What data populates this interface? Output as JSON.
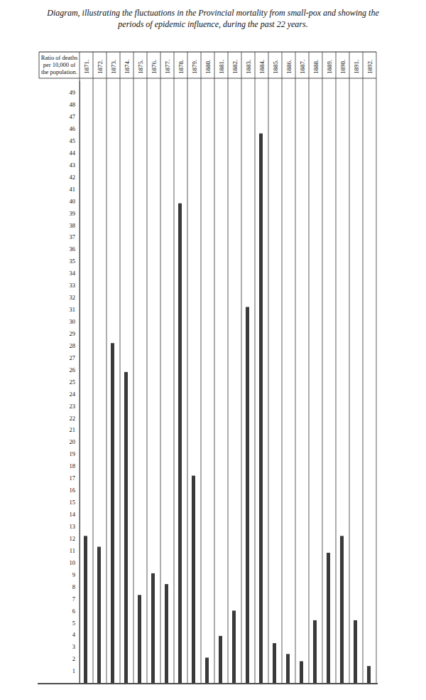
{
  "chart_data": {
    "type": "bar",
    "title": "Diagram, illustrating the fluctuations in the Provincial mortality from small-pox and showing the periods of epidemic influence, during the past 22 years.",
    "y_label": "Ratio of deaths per 10,000 of the population.",
    "categories": [
      "1871.",
      "1872.",
      "1873.",
      "1874.",
      "1875.",
      "1876.",
      "1877.",
      "1878.",
      "1879.",
      "1880.",
      "1881.",
      "1882.",
      "1883.",
      "1884.",
      "1885.",
      "1886.",
      "1887.",
      "1888.",
      "1889.",
      "1890.",
      "1891.",
      "1892."
    ],
    "values": [
      12.2,
      11.3,
      28.2,
      25.8,
      7.3,
      9.1,
      8.2,
      39.8,
      17.2,
      2.1,
      3.9,
      6.0,
      31.2,
      45.6,
      3.3,
      2.4,
      1.8,
      5.2,
      10.8,
      12.2,
      5.2,
      1.4
    ],
    "color": "#3a3a3a",
    "ylim": [
      0,
      50
    ],
    "yticks": [
      1,
      2,
      3,
      4,
      5,
      6,
      7,
      8,
      9,
      10,
      11,
      12,
      13,
      14,
      15,
      16,
      17,
      18,
      19,
      20,
      21,
      22,
      23,
      24,
      25,
      26,
      27,
      28,
      29,
      30,
      31,
      32,
      33,
      34,
      35,
      36,
      37,
      38,
      39,
      40,
      41,
      42,
      43,
      44,
      45,
      46,
      47,
      48,
      49
    ],
    "grid": false
  }
}
